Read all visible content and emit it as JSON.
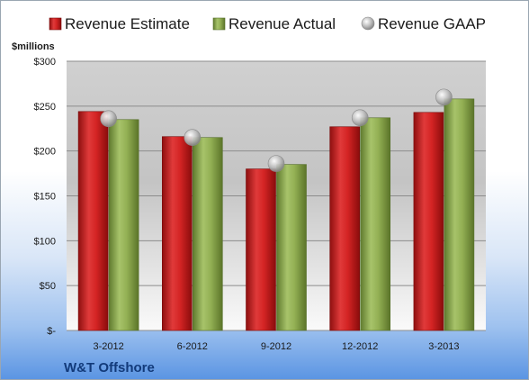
{
  "chart_data": {
    "type": "bar",
    "categories": [
      "3-2012",
      "6-2012",
      "9-2012",
      "12-2012",
      "3-2013"
    ],
    "series": [
      {
        "name": "Revenue Estimate",
        "type": "bar",
        "color": "#c81e1e",
        "values": [
          244,
          216,
          180,
          227,
          243
        ]
      },
      {
        "name": "Revenue Actual",
        "type": "bar",
        "color": "#8aa64a",
        "values": [
          235,
          215,
          185,
          237,
          258
        ]
      },
      {
        "name": "Revenue GAAP",
        "type": "scatter",
        "color": "#b8b8b8",
        "values": [
          236,
          215,
          186,
          237,
          260
        ]
      }
    ],
    "ylabel": "$millions",
    "ylim": [
      0,
      300
    ],
    "yticks": [
      0,
      50,
      100,
      150,
      200,
      250,
      300
    ],
    "ytick_labels": [
      "$-",
      "$50",
      "$100",
      "$150",
      "$200",
      "$250",
      "$300"
    ],
    "grid": true,
    "legend_position": "top"
  },
  "company": "W&T Offshore"
}
